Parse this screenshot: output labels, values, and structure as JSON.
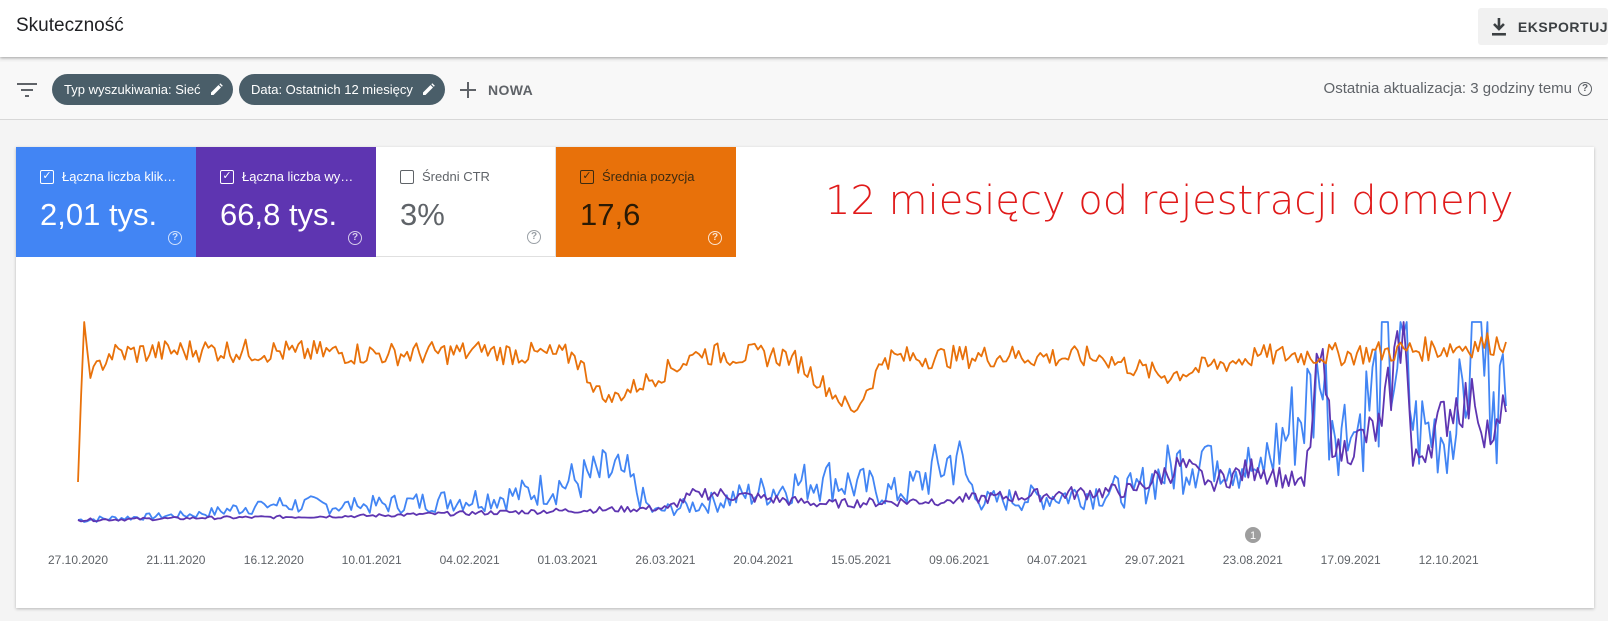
{
  "header": {
    "title": "Skuteczność",
    "export_label": "EKSPORTUJ"
  },
  "filters": {
    "chips": [
      {
        "label": "Typ wyszukiwania: Sieć"
      },
      {
        "label": "Data: Ostatnich 12 miesięcy"
      }
    ],
    "new_label": "NOWA",
    "last_update": "Ostatnia aktualizacja: 3 godziny temu"
  },
  "metrics": [
    {
      "label": "Łączna liczba klik…",
      "value": "2,01 tys.",
      "checked": true,
      "color": "#4285f4"
    },
    {
      "label": "Łączna liczba wy…",
      "value": "66,8 tys.",
      "checked": true,
      "color": "#5e35b1"
    },
    {
      "label": "Średni CTR",
      "value": "3%",
      "checked": false,
      "color": "#ffffff"
    },
    {
      "label": "Średnia pozycja",
      "value": "17,6",
      "checked": true,
      "color": "#e8710a"
    }
  ],
  "annotation": "12 miesięcy od rejestracji domeny",
  "chart_data": {
    "type": "line",
    "x_ticks": [
      "27.10.2020",
      "21.11.2020",
      "16.12.2020",
      "10.01.2021",
      "04.02.2021",
      "01.03.2021",
      "26.03.2021",
      "20.04.2021",
      "15.05.2021",
      "09.06.2021",
      "04.07.2021",
      "29.07.2021",
      "23.08.2021",
      "17.09.2021",
      "12.10.2021"
    ],
    "annotation_marker": "1",
    "series": [
      {
        "name": "Łączna liczba kliknięć",
        "color": "#4285f4",
        "keypoints": [
          [
            0,
            1
          ],
          [
            40,
            4
          ],
          [
            60,
            9
          ],
          [
            90,
            8
          ],
          [
            140,
            13
          ],
          [
            175,
            26
          ],
          [
            185,
            5
          ],
          [
            205,
            10
          ],
          [
            240,
            22
          ],
          [
            265,
            14
          ],
          [
            283,
            33
          ],
          [
            290,
            10
          ],
          [
            340,
            16
          ],
          [
            365,
            38
          ],
          [
            380,
            25
          ],
          [
            400,
            67
          ],
          [
            410,
            42
          ],
          [
            427,
            94
          ],
          [
            430,
            46
          ],
          [
            444,
            44
          ],
          [
            450,
            100
          ],
          [
            456,
            65
          ],
          [
            460,
            58
          ]
        ]
      },
      {
        "name": "Łączna liczba wyświetleń",
        "color": "#5e35b1",
        "keypoints": [
          [
            0,
            1
          ],
          [
            40,
            2
          ],
          [
            90,
            3
          ],
          [
            140,
            5
          ],
          [
            190,
            7
          ],
          [
            200,
            15
          ],
          [
            240,
            9
          ],
          [
            280,
            11
          ],
          [
            340,
            16
          ],
          [
            355,
            28
          ],
          [
            365,
            20
          ],
          [
            380,
            27
          ],
          [
            395,
            18
          ],
          [
            400,
            80
          ],
          [
            405,
            33
          ],
          [
            420,
            48
          ],
          [
            427,
            100
          ],
          [
            430,
            28
          ],
          [
            444,
            62
          ],
          [
            450,
            58
          ],
          [
            456,
            41
          ],
          [
            460,
            55
          ]
        ]
      },
      {
        "name": "Średnia pozycja",
        "color": "#e8710a",
        "keypoints": [
          [
            0,
            20
          ],
          [
            2,
            100
          ],
          [
            4,
            72
          ],
          [
            10,
            84
          ],
          [
            40,
            86
          ],
          [
            70,
            85
          ],
          [
            100,
            84
          ],
          [
            130,
            85
          ],
          [
            160,
            83
          ],
          [
            170,
            60
          ],
          [
            200,
            84
          ],
          [
            230,
            83
          ],
          [
            250,
            55
          ],
          [
            260,
            82
          ],
          [
            300,
            83
          ],
          [
            330,
            82
          ],
          [
            350,
            73
          ],
          [
            380,
            83
          ],
          [
            410,
            84
          ],
          [
            440,
            87
          ],
          [
            460,
            90
          ]
        ]
      }
    ],
    "x_count": 461,
    "y_range": [
      0,
      100
    ],
    "grid": false,
    "legend": "metric tiles above chart"
  }
}
